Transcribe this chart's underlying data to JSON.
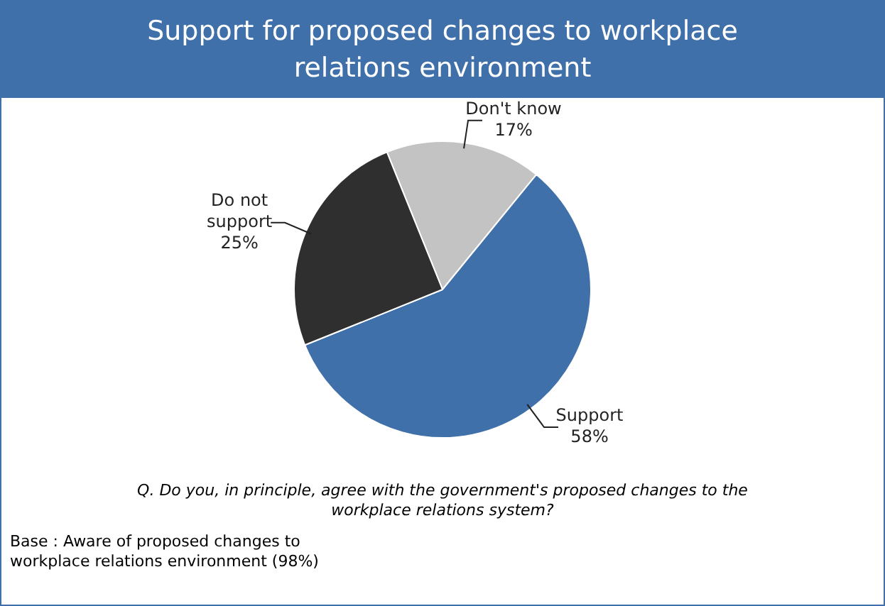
{
  "chart_data": {
    "type": "pie",
    "title": "Support for proposed changes to workplace relations environment",
    "categories": [
      "Don't know",
      "Support",
      "Do not support"
    ],
    "values": [
      17,
      58,
      25
    ],
    "value_labels": [
      "17%",
      "58%",
      "25%"
    ],
    "colors": [
      "#c3c3c3",
      "#3f70a9",
      "#2f2f2f"
    ],
    "legend": false,
    "annotations": [
      "Q. Do you, in principle, agree with the government's proposed changes to the workplace relations system?",
      "Base : Aware of proposed changes to workplace relations environment (98%)"
    ]
  }
}
